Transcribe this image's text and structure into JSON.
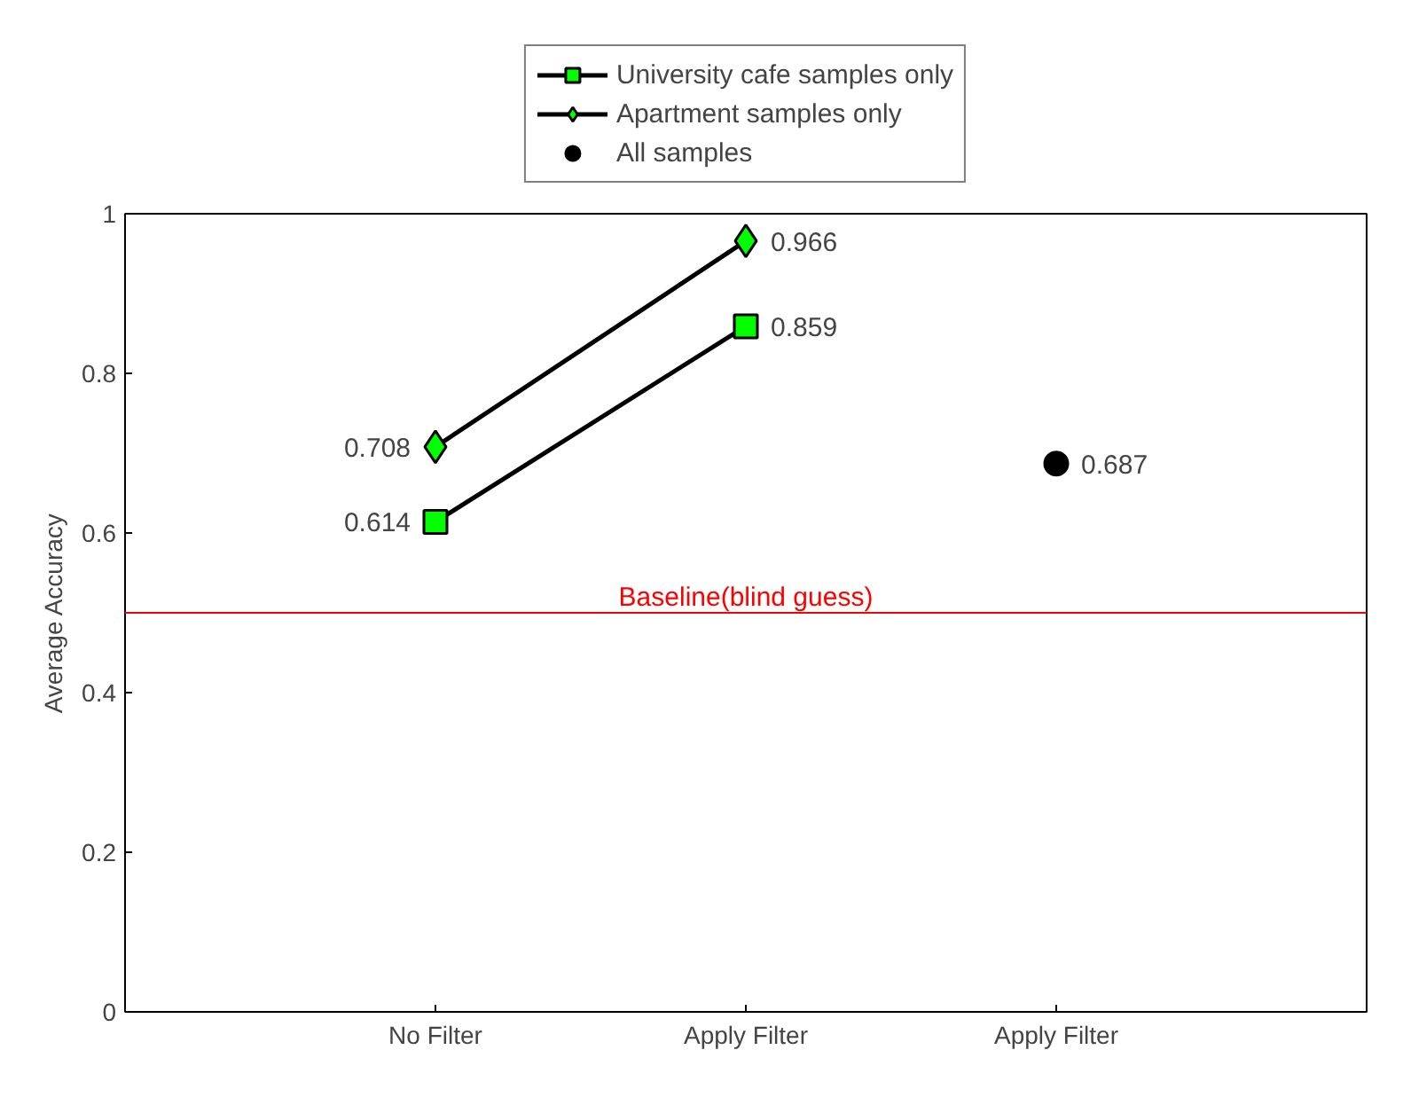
{
  "chart_data": {
    "type": "line",
    "ylabel": "Average Accuracy",
    "categories": [
      "No Filter",
      "Apply Filter",
      "Apply Filter"
    ],
    "series": [
      {
        "name": "University cafe samples only",
        "color": "#00ff00",
        "marker": "square",
        "values": [
          0.614,
          0.859,
          null
        ]
      },
      {
        "name": "Apartment samples only",
        "color": "#00ff00",
        "marker": "diamond",
        "values": [
          0.708,
          0.966,
          null
        ]
      },
      {
        "name": "All samples",
        "type": "scatter",
        "color": "#000000",
        "marker": "circle",
        "values": [
          null,
          null,
          0.687
        ]
      }
    ],
    "ylim": [
      0,
      1
    ],
    "yticks": [
      0,
      0.2,
      0.4,
      0.6,
      0.8,
      1
    ],
    "data_labels": true,
    "grid": false,
    "legend": "top",
    "ref_lines": [
      {
        "axis": "y",
        "value": 0.5,
        "label": "Baseline(blind guess)",
        "color": "#ff0000",
        "line_style": "solid"
      }
    ]
  }
}
